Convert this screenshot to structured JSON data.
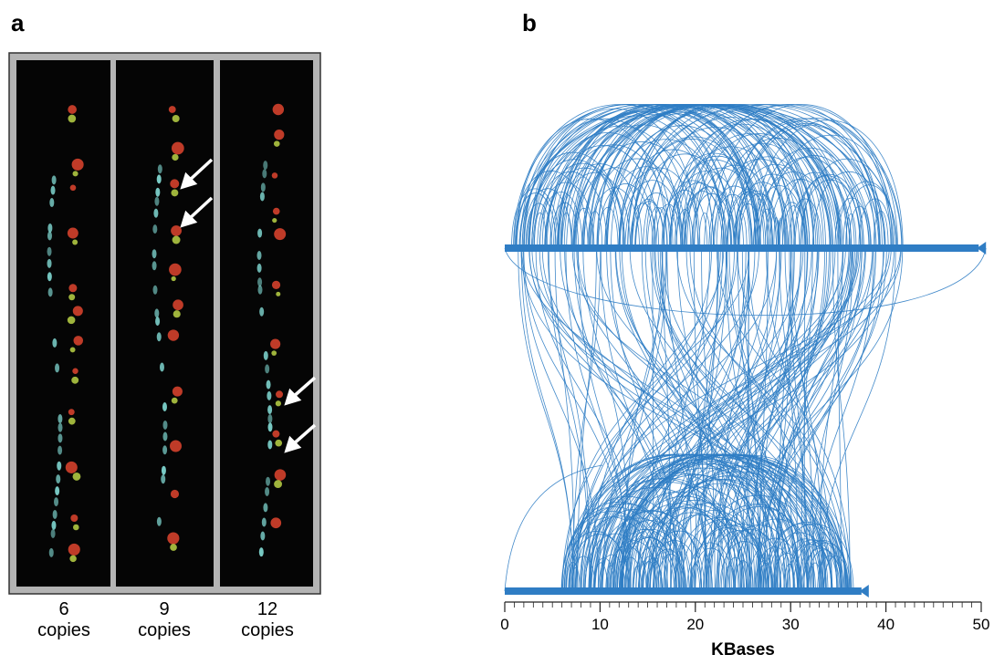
{
  "panel_a": {
    "label": "a",
    "lanes": [
      {
        "count": "6",
        "unit": "copies"
      },
      {
        "count": "9",
        "unit": "copies"
      },
      {
        "count": "12",
        "unit": "copies"
      }
    ]
  },
  "panel_b": {
    "label": "b",
    "xlabel": "KBases",
    "xlim": [
      0,
      50
    ],
    "xticks": [
      0,
      10,
      20,
      30,
      40,
      50
    ],
    "contig_lengths": [
      50.5,
      38.2
    ],
    "color": "#2f7dc4"
  }
}
